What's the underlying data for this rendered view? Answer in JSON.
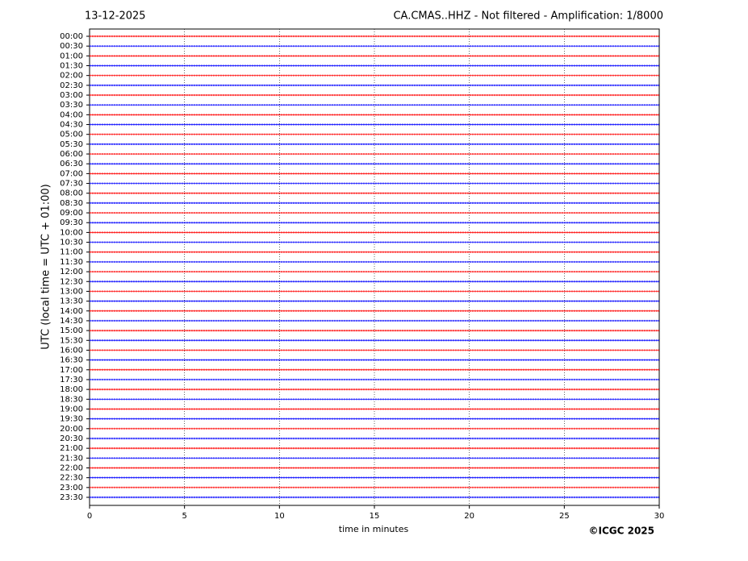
{
  "chart_data": {
    "type": "helicorder",
    "date": "13-12-2025",
    "title": "CA.CMAS..HHZ - Not filtered - Amplification: 1/8000",
    "ylabel": "UTC (local time = UTC + 01:00)",
    "xlabel": "time in minutes",
    "credit": "©ICGC 2025",
    "categories": [
      "00:00",
      "00:30",
      "01:00",
      "01:30",
      "02:00",
      "02:30",
      "03:00",
      "03:30",
      "04:00",
      "04:30",
      "05:00",
      "05:30",
      "06:00",
      "06:30",
      "07:00",
      "07:30",
      "08:00",
      "08:30",
      "09:00",
      "09:30",
      "10:00",
      "10:30",
      "11:00",
      "11:30",
      "12:00",
      "12:30",
      "13:00",
      "13:30",
      "14:00",
      "14:30",
      "15:00",
      "15:30",
      "16:00",
      "16:30",
      "17:00",
      "17:30",
      "18:00",
      "18:30",
      "19:00",
      "19:30",
      "20:00",
      "20:30",
      "21:00",
      "21:30",
      "22:00",
      "22:30",
      "23:00",
      "23:30"
    ],
    "trace_colors": [
      "#ff0000",
      "#0000ff"
    ],
    "xlim": [
      0,
      30
    ],
    "xticks": [
      0,
      5,
      10,
      15,
      20,
      25,
      30
    ],
    "grid": true
  }
}
